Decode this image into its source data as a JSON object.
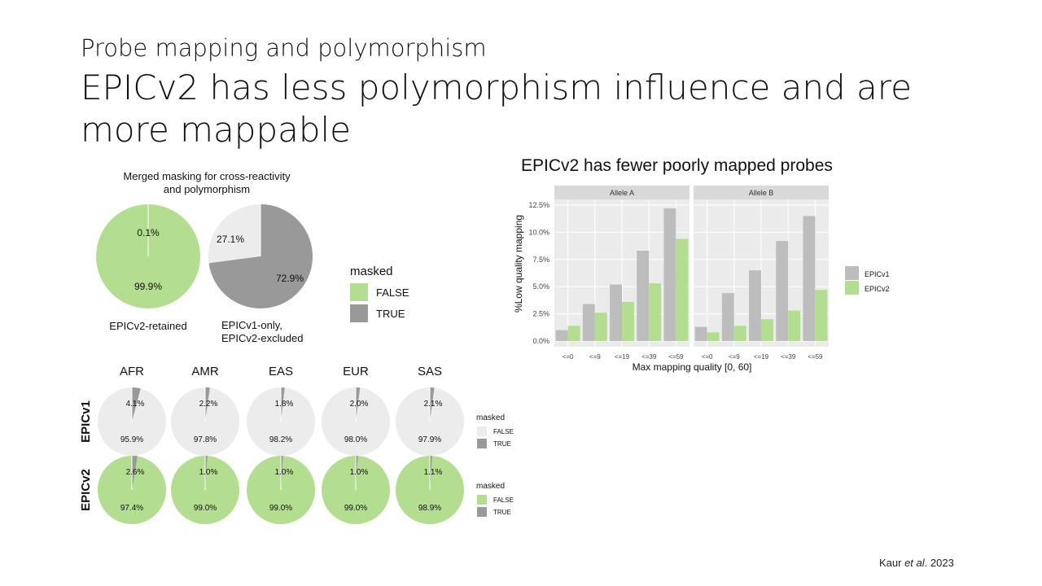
{
  "slide": {
    "subtitle": "Probe mapping and polymorphism",
    "title": "EPICv2 has less polymorphism influence and are more mappable",
    "citation_author": "Kaur ",
    "citation_etal": "et al",
    "citation_year": ". 2023"
  },
  "colors": {
    "green": "#b3de8f",
    "dark_gray": "#999999",
    "light_gray": "#ececec",
    "bar_gray": "#bdbdbd",
    "bar_green": "#b3de8f",
    "panel": "#ebebeb",
    "strip": "#d9d9d9"
  },
  "chart_data": [
    {
      "type": "pie",
      "title": "Merged masking for cross-reactivity and polymorphism",
      "title_lines": [
        "Merged masking for cross-reactivity",
        "and polymorphism"
      ],
      "legend": {
        "title": "masked",
        "entries": [
          "FALSE",
          "TRUE"
        ]
      },
      "pies": [
        {
          "label_lines": [
            "EPICv2-retained"
          ],
          "false": 99.9,
          "true": 0.1,
          "false_label": "99.9%",
          "true_label": "0.1%",
          "false_color": "#b3de8f",
          "true_color": "#999999"
        },
        {
          "label_lines": [
            "EPICv1-only,",
            "EPICv2-excluded"
          ],
          "false": 27.1,
          "true": 72.9,
          "false_label": "27.1%",
          "true_label": "72.9%",
          "false_color": "#ececec",
          "true_color": "#999999"
        }
      ]
    },
    {
      "type": "pie",
      "columns": [
        "AFR",
        "AMR",
        "EAS",
        "EUR",
        "SAS"
      ],
      "rows": [
        {
          "name": "EPICv1",
          "false_color": "#ececec",
          "true": [
            4.1,
            2.2,
            1.8,
            2.0,
            2.1
          ],
          "false": [
            95.9,
            97.8,
            98.2,
            98.0,
            97.9
          ],
          "true_labels": [
            "4.1%",
            "2.2%",
            "1.8%",
            "2.0%",
            "2.1%"
          ],
          "false_labels": [
            "95.9%",
            "97.8%",
            "98.2%",
            "98.0%",
            "97.9%"
          ],
          "legend": {
            "title": "masked",
            "entries": [
              "FALSE",
              "TRUE"
            ]
          }
        },
        {
          "name": "EPICv2",
          "false_color": "#b3de8f",
          "true": [
            2.6,
            1.0,
            1.0,
            1.0,
            1.1
          ],
          "false": [
            97.4,
            99.0,
            99.0,
            99.0,
            98.9
          ],
          "true_labels": [
            "2.6%",
            "1.0%",
            "1.0%",
            "1.0%",
            "1.1%"
          ],
          "false_labels": [
            "97.4%",
            "99.0%",
            "99.0%",
            "99.0%",
            "98.9%"
          ],
          "legend": {
            "title": "masked",
            "entries": [
              "FALSE",
              "TRUE"
            ]
          }
        }
      ]
    },
    {
      "type": "bar",
      "title": "EPICv2 has fewer poorly mapped probes",
      "xlabel": "Max mapping quality [0, 60]",
      "ylabel": "%Low quality mapping",
      "ylim": [
        0,
        13.2
      ],
      "yticks": [
        0,
        2.5,
        5,
        7.5,
        10,
        12.5
      ],
      "ytick_labels": [
        "0.0%",
        "2.5%",
        "5.0%",
        "7.5%",
        "10.0%",
        "12.5%"
      ],
      "categories": [
        "<=0",
        "<=9",
        "<=19",
        "<=39",
        "<=59"
      ],
      "legend": {
        "placement": "right",
        "entries": [
          "EPICv1",
          "EPICv2"
        ]
      },
      "facets": [
        {
          "name": "Allele A",
          "series": [
            {
              "name": "EPICv1",
              "values": [
                1.0,
                3.4,
                5.2,
                8.3,
                12.2
              ]
            },
            {
              "name": "EPICv2",
              "values": [
                1.4,
                2.6,
                3.6,
                5.3,
                9.4
              ]
            }
          ]
        },
        {
          "name": "Allele B",
          "series": [
            {
              "name": "EPICv1",
              "values": [
                1.3,
                4.4,
                6.5,
                9.2,
                11.5
              ]
            },
            {
              "name": "EPICv2",
              "values": [
                0.8,
                1.4,
                2.0,
                2.8,
                4.7
              ]
            }
          ]
        }
      ]
    }
  ]
}
